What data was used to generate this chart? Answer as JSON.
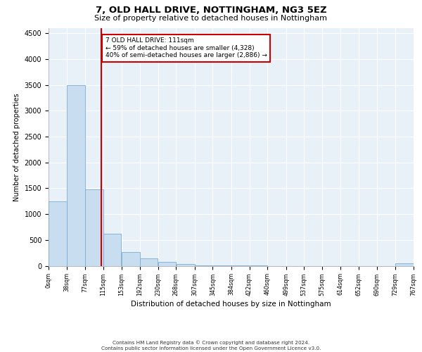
{
  "title": "7, OLD HALL DRIVE, NOTTINGHAM, NG3 5EZ",
  "subtitle": "Size of property relative to detached houses in Nottingham",
  "xlabel": "Distribution of detached houses by size in Nottingham",
  "ylabel": "Number of detached properties",
  "bar_color": "#c8ddf0",
  "bar_edge_color": "#7aaed4",
  "background_color": "#e8f0f8",
  "grid_color": "#ffffff",
  "annotation_line_color": "#cc0000",
  "annotation_box_color": "#cc0000",
  "property_line_x": 111,
  "annotation_title": "7 OLD HALL DRIVE: 111sqm",
  "annotation_line1": "← 59% of detached houses are smaller (4,328)",
  "annotation_line2": "40% of semi-detached houses are larger (2,886) →",
  "bin_edges": [
    0,
    38,
    77,
    115,
    153,
    192,
    230,
    268,
    307,
    345,
    384,
    422,
    460,
    499,
    537,
    575,
    614,
    652,
    690,
    729,
    767
  ],
  "bin_labels": [
    "0sqm",
    "38sqm",
    "77sqm",
    "115sqm",
    "153sqm",
    "192sqm",
    "230sqm",
    "268sqm",
    "307sqm",
    "345sqm",
    "384sqm",
    "422sqm",
    "460sqm",
    "499sqm",
    "537sqm",
    "575sqm",
    "614sqm",
    "652sqm",
    "690sqm",
    "729sqm",
    "767sqm"
  ],
  "bar_heights": [
    1250,
    3500,
    1480,
    620,
    270,
    145,
    80,
    30,
    10,
    5,
    2,
    1,
    0,
    0,
    0,
    0,
    0,
    0,
    0,
    50,
    0
  ],
  "ylim": [
    0,
    4600
  ],
  "yticks": [
    0,
    500,
    1000,
    1500,
    2000,
    2500,
    3000,
    3500,
    4000,
    4500
  ],
  "footer_line1": "Contains HM Land Registry data © Crown copyright and database right 2024.",
  "footer_line2": "Contains public sector information licensed under the Open Government Licence v3.0."
}
